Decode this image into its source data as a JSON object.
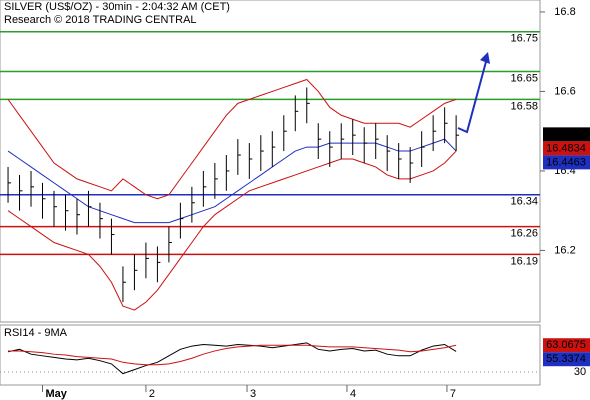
{
  "chart_data": [
    {
      "type": "price",
      "title": "SILVER (US$/OZ) - 30min - 2:04:32 AM (CET)",
      "subtitle": "Research © 2018 TRADING CENTRAL",
      "xlim": [
        -0.7,
        46.3
      ],
      "ylim": [
        16.02,
        16.83
      ],
      "yticks": [
        16.2,
        16.4,
        16.6,
        16.8
      ],
      "xticks": [
        {
          "value": 3,
          "label": "May"
        },
        {
          "value": 12,
          "label": "2"
        },
        {
          "value": 20.8,
          "label": "3"
        },
        {
          "value": 29.5,
          "label": "4"
        },
        {
          "value": 38.2,
          "label": "7"
        }
      ],
      "bar_color": "#000000",
      "high": [
        16.41,
        16.39,
        16.4,
        16.37,
        16.35,
        16.34,
        16.33,
        16.35,
        16.32,
        16.28,
        16.16,
        16.19,
        16.22,
        16.21,
        16.26,
        16.32,
        16.36,
        16.4,
        16.42,
        16.44,
        16.48,
        16.47,
        16.49,
        16.5,
        16.54,
        16.59,
        16.61,
        16.52,
        16.5,
        16.52,
        16.53,
        16.51,
        16.52,
        16.49,
        16.47,
        16.46,
        16.5,
        16.54,
        16.56,
        16.54
      ],
      "low": [
        16.32,
        16.3,
        16.31,
        16.28,
        16.26,
        16.25,
        16.24,
        16.26,
        16.23,
        16.19,
        16.07,
        16.1,
        16.13,
        16.12,
        16.17,
        16.23,
        16.27,
        16.31,
        16.33,
        16.35,
        16.39,
        16.38,
        16.4,
        16.41,
        16.45,
        16.5,
        16.52,
        16.43,
        16.41,
        16.43,
        16.44,
        16.42,
        16.43,
        16.4,
        16.38,
        16.37,
        16.41,
        16.45,
        16.47,
        16.45
      ],
      "close": [
        16.37,
        16.35,
        16.36,
        16.33,
        16.31,
        16.3,
        16.29,
        16.31,
        16.28,
        16.24,
        16.12,
        16.15,
        16.18,
        16.17,
        16.22,
        16.28,
        16.32,
        16.36,
        16.38,
        16.4,
        16.44,
        16.43,
        16.45,
        16.46,
        16.5,
        16.55,
        16.57,
        16.48,
        16.46,
        16.48,
        16.49,
        16.47,
        16.48,
        16.45,
        16.43,
        16.42,
        16.46,
        16.5,
        16.52,
        16.49
      ],
      "series": [
        {
          "color": "#1f2fbf",
          "values": [
            16.45,
            16.43,
            16.41,
            16.39,
            16.37,
            16.35,
            16.33,
            16.31,
            16.3,
            16.29,
            16.28,
            16.27,
            16.27,
            16.27,
            16.27,
            16.28,
            16.29,
            16.3,
            16.31,
            16.33,
            16.35,
            16.37,
            16.39,
            16.41,
            16.43,
            16.45,
            16.46,
            16.46,
            16.47,
            16.47,
            16.47,
            16.47,
            16.47,
            16.46,
            16.45,
            16.45,
            16.46,
            16.47,
            16.48,
            16.45
          ]
        },
        {
          "color": "#cc1111",
          "values": [
            16.58,
            16.54,
            16.5,
            16.46,
            16.42,
            16.4,
            16.38,
            16.37,
            16.36,
            16.35,
            16.38,
            16.36,
            16.34,
            16.33,
            16.34,
            16.38,
            16.42,
            16.46,
            16.5,
            16.54,
            16.57,
            16.58,
            16.59,
            16.6,
            16.61,
            16.62,
            16.63,
            16.6,
            16.56,
            16.54,
            16.53,
            16.52,
            16.52,
            16.52,
            16.52,
            16.51,
            16.53,
            16.55,
            16.57,
            16.58
          ]
        },
        {
          "color": "#cc1111",
          "values": [
            16.3,
            16.28,
            16.26,
            16.24,
            16.22,
            16.21,
            16.2,
            16.19,
            16.16,
            16.12,
            16.06,
            16.05,
            16.07,
            16.1,
            16.14,
            16.18,
            16.22,
            16.26,
            16.29,
            16.31,
            16.33,
            16.35,
            16.36,
            16.37,
            16.38,
            16.39,
            16.4,
            16.41,
            16.42,
            16.43,
            16.43,
            16.42,
            16.41,
            16.39,
            16.38,
            16.38,
            16.39,
            16.4,
            16.42,
            16.45
          ]
        }
      ],
      "levels": [
        {
          "value": 16.75,
          "color": "#2a9d2a"
        },
        {
          "value": 16.65,
          "color": "#2a9d2a"
        },
        {
          "value": 16.58,
          "color": "#2a9d2a"
        },
        {
          "value": 16.34,
          "color": "#1f2fbf"
        },
        {
          "value": 16.26,
          "color": "#cc1111"
        },
        {
          "value": 16.19,
          "color": "#cc1111"
        }
      ],
      "tags": [
        {
          "value": 16.492,
          "color": "#000000"
        },
        {
          "value": 16.4834,
          "color": "#cc1111"
        },
        {
          "value": 16.4463,
          "color": "#1f2fbf"
        }
      ]
    },
    {
      "type": "rsi",
      "title": "RSI14 - 9MA",
      "ylim": [
        14,
        88
      ],
      "yticks": [
        30
      ],
      "series": [
        {
          "color": "#000000",
          "values": [
            55,
            58,
            52,
            50,
            48,
            46,
            45,
            47,
            44,
            40,
            28,
            33,
            38,
            42,
            50,
            58,
            62,
            64,
            63,
            62,
            64,
            63,
            62,
            60,
            62,
            64,
            66,
            58,
            56,
            58,
            59,
            56,
            57,
            52,
            50,
            50,
            57,
            62,
            64,
            55.3374
          ]
        },
        {
          "color": "#cc1111",
          "values": [
            56,
            56,
            55,
            54,
            52,
            51,
            49,
            48,
            47,
            46,
            42,
            40,
            39,
            39,
            40,
            43,
            47,
            52,
            56,
            59,
            61,
            62,
            63,
            63,
            63,
            63,
            63,
            62,
            61,
            61,
            61,
            60,
            59,
            58,
            57,
            55,
            56,
            58,
            60,
            63.0675
          ]
        }
      ]
    }
  ]
}
